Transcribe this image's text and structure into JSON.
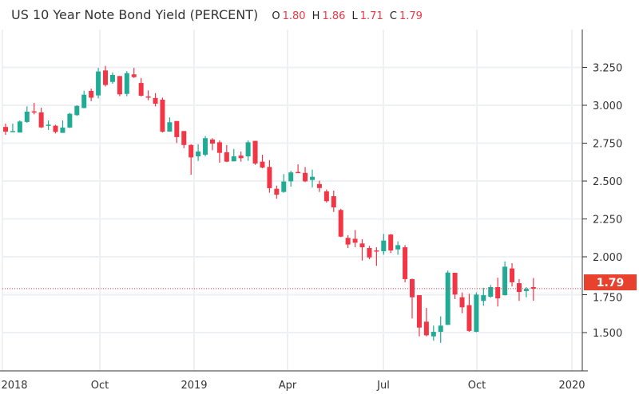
{
  "chart_data": {
    "type": "candlestick",
    "title": "US 10 Year Note Bond Yield (PERCENT)",
    "ohlc_readout": {
      "o_label": "O",
      "o": "1.80",
      "h_label": "H",
      "h": "1.86",
      "l_label": "L",
      "l": "1.71",
      "c_label": "C",
      "c": "1.79"
    },
    "interval": "weekly",
    "ylim": [
      1.25,
      3.46
    ],
    "yticks": [
      "3.250",
      "3.000",
      "2.750",
      "2.500",
      "2.250",
      "2.000",
      "1.750",
      "1.500"
    ],
    "ytick_values": [
      3.25,
      3.0,
      2.75,
      2.5,
      2.25,
      2.0,
      1.75,
      1.5
    ],
    "xticks": [
      "2018",
      "Oct",
      "2019",
      "Apr",
      "Jul",
      "Oct",
      "2020"
    ],
    "last_price": 1.79,
    "last_price_label": "1.79",
    "colors": {
      "up": "#22ab94",
      "down": "#f23645",
      "last_price_bg": "#e8412e",
      "grid": "#eef0f3",
      "axis": "#333333"
    },
    "candles_ohlc": [
      [
        2.857,
        2.879,
        2.805,
        2.826
      ],
      [
        2.826,
        2.879,
        2.826,
        2.83
      ],
      [
        2.82,
        2.9,
        2.82,
        2.893
      ],
      [
        2.89,
        2.993,
        2.884,
        2.958
      ],
      [
        2.96,
        3.016,
        2.94,
        2.952
      ],
      [
        2.953,
        2.984,
        2.85,
        2.854
      ],
      [
        2.864,
        2.9,
        2.837,
        2.872
      ],
      [
        2.865,
        2.872,
        2.814,
        2.824
      ],
      [
        2.818,
        2.9,
        2.818,
        2.853
      ],
      [
        2.853,
        2.95,
        2.85,
        2.944
      ],
      [
        2.935,
        3.0,
        2.93,
        2.996
      ],
      [
        2.982,
        3.096,
        2.98,
        3.07
      ],
      [
        3.095,
        3.11,
        3.027,
        3.05
      ],
      [
        3.065,
        3.247,
        3.045,
        3.223
      ],
      [
        3.23,
        3.26,
        3.124,
        3.134
      ],
      [
        3.154,
        3.217,
        3.142,
        3.2
      ],
      [
        3.193,
        3.193,
        3.06,
        3.072
      ],
      [
        3.075,
        3.225,
        3.06,
        3.212
      ],
      [
        3.204,
        3.247,
        3.18,
        3.186
      ],
      [
        3.147,
        3.18,
        3.058,
        3.063
      ],
      [
        3.058,
        3.098,
        3.033,
        3.053
      ],
      [
        3.048,
        3.08,
        2.993,
        3.01
      ],
      [
        3.037,
        3.05,
        2.82,
        2.826
      ],
      [
        2.826,
        2.92,
        2.826,
        2.888
      ],
      [
        2.896,
        2.896,
        2.751,
        2.79
      ],
      [
        2.83,
        2.83,
        2.717,
        2.738
      ],
      [
        2.738,
        2.743,
        2.542,
        2.656
      ],
      [
        2.663,
        2.743,
        2.633,
        2.695
      ],
      [
        2.674,
        2.797,
        2.663,
        2.783
      ],
      [
        2.774,
        2.783,
        2.703,
        2.747
      ],
      [
        2.756,
        2.768,
        2.621,
        2.686
      ],
      [
        2.69,
        2.738,
        2.625,
        2.628
      ],
      [
        2.63,
        2.712,
        2.63,
        2.663
      ],
      [
        2.668,
        2.695,
        2.628,
        2.651
      ],
      [
        2.663,
        2.768,
        2.633,
        2.756
      ],
      [
        2.765,
        2.765,
        2.607,
        2.616
      ],
      [
        2.628,
        2.674,
        2.584,
        2.589
      ],
      [
        2.593,
        2.638,
        2.423,
        2.453
      ],
      [
        2.449,
        2.47,
        2.383,
        2.41
      ],
      [
        2.428,
        2.546,
        2.423,
        2.497
      ],
      [
        2.498,
        2.568,
        2.463,
        2.557
      ],
      [
        2.56,
        2.61,
        2.553,
        2.553
      ],
      [
        2.554,
        2.593,
        2.493,
        2.498
      ],
      [
        2.507,
        2.575,
        2.458,
        2.528
      ],
      [
        2.48,
        2.502,
        2.428,
        2.454
      ],
      [
        2.432,
        2.444,
        2.358,
        2.367
      ],
      [
        2.4,
        2.437,
        2.296,
        2.326
      ],
      [
        2.309,
        2.317,
        2.13,
        2.133
      ],
      [
        2.125,
        2.142,
        2.058,
        2.081
      ],
      [
        2.119,
        2.177,
        2.063,
        2.093
      ],
      [
        2.088,
        2.116,
        1.975,
        2.063
      ],
      [
        2.058,
        2.072,
        1.984,
        1.996
      ],
      [
        2.042,
        2.063,
        1.94,
        2.037
      ],
      [
        2.037,
        2.151,
        2.014,
        2.107
      ],
      [
        2.147,
        2.151,
        2.025,
        2.042
      ],
      [
        2.049,
        2.102,
        2.014,
        2.077
      ],
      [
        2.063,
        2.077,
        1.832,
        1.853
      ],
      [
        1.853,
        1.856,
        1.593,
        1.733
      ],
      [
        1.747,
        1.747,
        1.475,
        1.533
      ],
      [
        1.572,
        1.663,
        1.475,
        1.482
      ],
      [
        1.475,
        1.546,
        1.446,
        1.505
      ],
      [
        1.505,
        1.607,
        1.432,
        1.546
      ],
      [
        1.551,
        1.909,
        1.551,
        1.896
      ],
      [
        1.895,
        1.895,
        1.721,
        1.751
      ],
      [
        1.733,
        1.765,
        1.628,
        1.667
      ],
      [
        1.681,
        1.756,
        1.505,
        1.511
      ],
      [
        1.505,
        1.765,
        1.502,
        1.751
      ],
      [
        1.709,
        1.796,
        1.677,
        1.747
      ],
      [
        1.737,
        1.814,
        1.73,
        1.8
      ],
      [
        1.8,
        1.862,
        1.672,
        1.726
      ],
      [
        1.747,
        1.97,
        1.744,
        1.935
      ],
      [
        1.923,
        1.958,
        1.804,
        1.832
      ],
      [
        1.826,
        1.853,
        1.709,
        1.768
      ],
      [
        1.774,
        1.8,
        1.733,
        1.788
      ],
      [
        1.8,
        1.86,
        1.71,
        1.79
      ]
    ]
  }
}
